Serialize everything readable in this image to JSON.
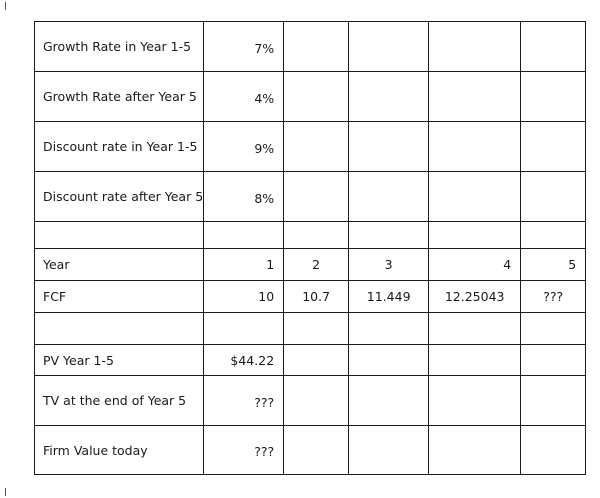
{
  "rows": {
    "growth_1_5": {
      "label": "Growth Rate in Year 1-5",
      "value": "7%"
    },
    "growth_after": {
      "label": "Growth Rate after Year 5",
      "value": "4%"
    },
    "disc_1_5": {
      "label": "Discount rate in Year 1-5",
      "value": "9%"
    },
    "disc_after": {
      "label": "Discount rate after Year 5",
      "value": "8%"
    },
    "year": {
      "label": "Year",
      "values": [
        "1",
        "2",
        "3",
        "4",
        "5"
      ]
    },
    "fcf": {
      "label": "FCF",
      "values": [
        "10",
        "10.7",
        "11.449",
        "12.25043",
        "???"
      ]
    },
    "pv": {
      "label": "PV Year 1-5",
      "value": "$44.22"
    },
    "tv": {
      "label": "TV at the end of Year 5",
      "value": "???"
    },
    "firm": {
      "label": "Firm Value today",
      "value": "???"
    }
  }
}
